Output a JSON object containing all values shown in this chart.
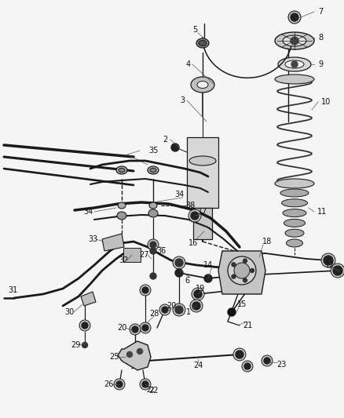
{
  "bg_color": "#f0f0f0",
  "line_color": "#1a1a1a",
  "fig_width": 4.38,
  "fig_height": 5.33,
  "dpi": 100,
  "label_fs": 7,
  "gray_light": "#c8c8c8",
  "gray_med": "#888888",
  "gray_dark": "#444444",
  "coil_color": "#555555",
  "strut_fill": "#d0d0d0",
  "knuckle_fill": "#b8b8b8"
}
